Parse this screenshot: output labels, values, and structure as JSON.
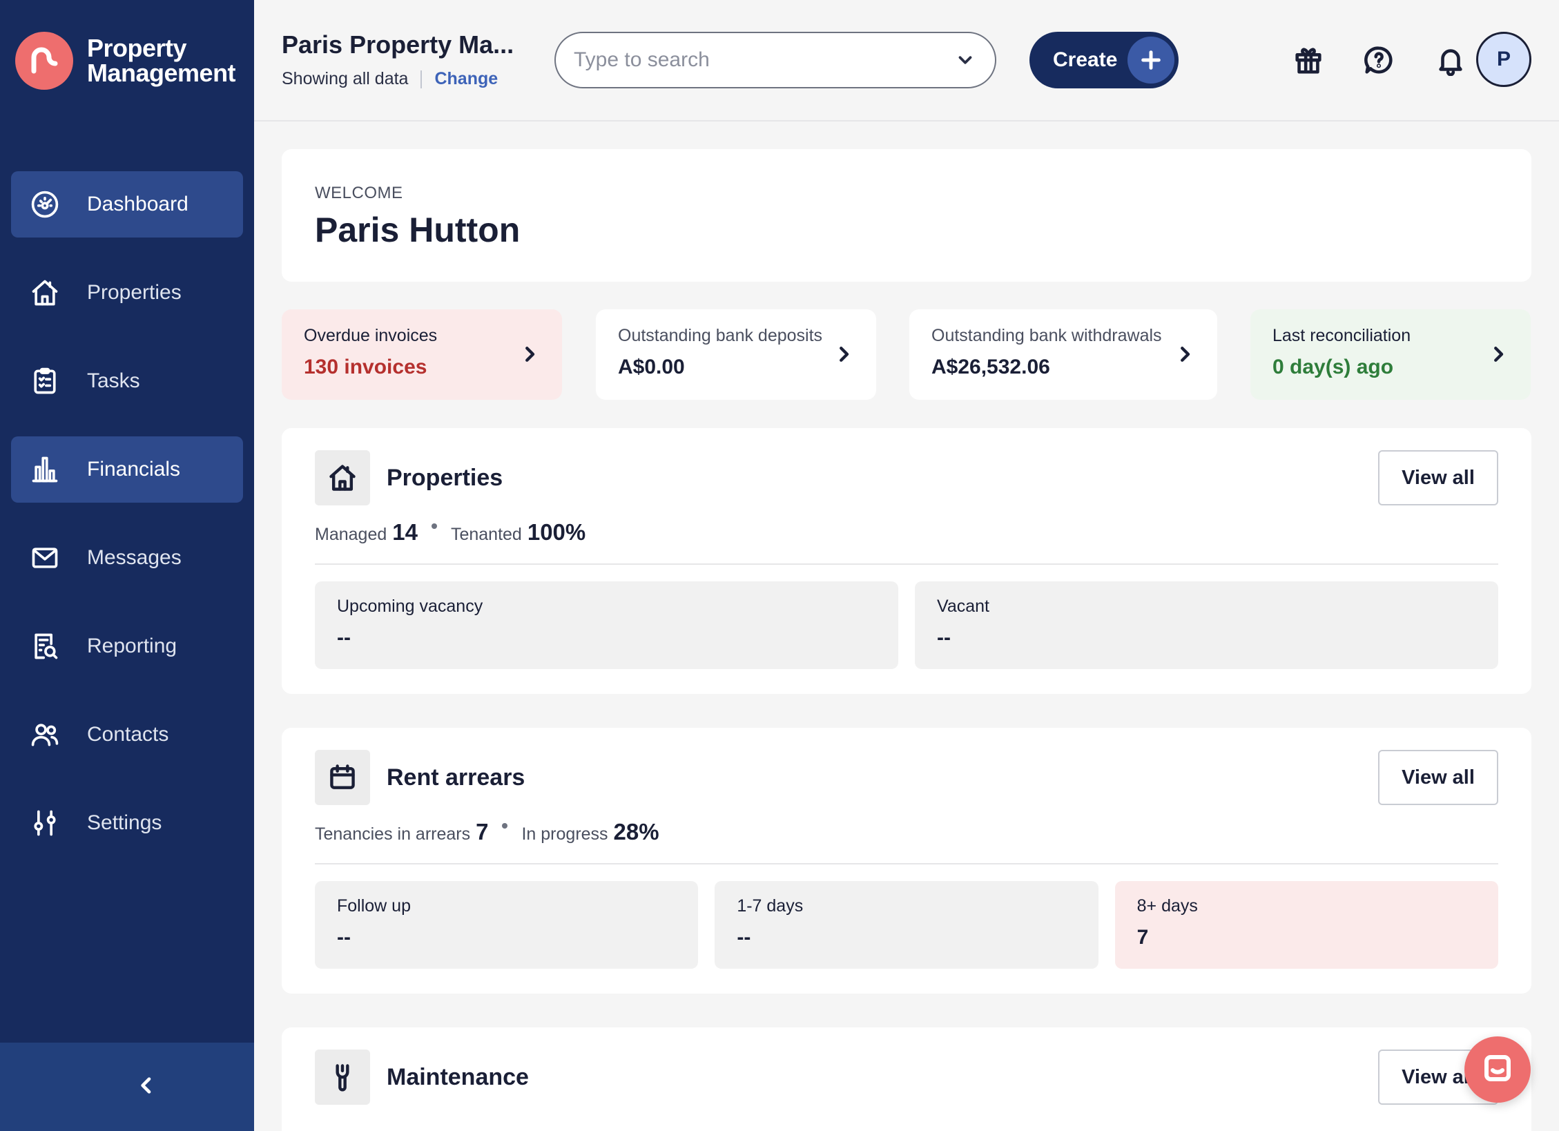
{
  "brand": {
    "line1": "Property",
    "line2": "Management",
    "logo_icon": "brand-logo-icon"
  },
  "sidebar": {
    "items": [
      {
        "label": "Dashboard",
        "icon": "dashboard-icon",
        "active": true
      },
      {
        "label": "Properties",
        "icon": "house-icon",
        "active": false
      },
      {
        "label": "Tasks",
        "icon": "clipboard-icon",
        "active": false
      },
      {
        "label": "Financials",
        "icon": "bar-chart-icon",
        "active": true
      },
      {
        "label": "Messages",
        "icon": "envelope-icon",
        "active": false
      },
      {
        "label": "Reporting",
        "icon": "report-search-icon",
        "active": false
      },
      {
        "label": "Contacts",
        "icon": "users-icon",
        "active": false
      },
      {
        "label": "Settings",
        "icon": "sliders-icon",
        "active": false
      }
    ],
    "collapse_icon": "chevron-left-icon"
  },
  "header": {
    "company_name": "Paris Property Ma...",
    "showing": "Showing all data",
    "change_label": "Change",
    "search_placeholder": "Type to search",
    "create_label": "Create",
    "avatar_initial": "P"
  },
  "welcome": {
    "eyebrow": "WELCOME",
    "name": "Paris Hutton"
  },
  "stats": [
    {
      "label": "Overdue invoices",
      "value": "130 invoices",
      "tone": "red"
    },
    {
      "label": "Outstanding bank deposits",
      "value": "A$0.00",
      "tone": "white"
    },
    {
      "label": "Outstanding bank withdrawals",
      "value": "A$26,532.06",
      "tone": "white"
    },
    {
      "label": "Last reconciliation",
      "value": "0 day(s) ago",
      "tone": "green"
    }
  ],
  "properties": {
    "title": "Properties",
    "view_all": "View all",
    "managed_label": "Managed",
    "managed_value": "14",
    "tenanted_label": "Tenanted",
    "tenanted_value": "100%",
    "tiles": [
      {
        "label": "Upcoming vacancy",
        "value": "--"
      },
      {
        "label": "Vacant",
        "value": "--"
      }
    ]
  },
  "rent_arrears": {
    "title": "Rent arrears",
    "view_all": "View all",
    "arrears_label": "Tenancies in arrears",
    "arrears_value": "7",
    "progress_label": "In progress",
    "progress_value": "28%",
    "tiles": [
      {
        "label": "Follow up",
        "value": "--"
      },
      {
        "label": "1-7 days",
        "value": "--"
      },
      {
        "label": "8+ days",
        "value": "7"
      }
    ]
  },
  "maintenance": {
    "title": "Maintenance",
    "view_all": "View all"
  },
  "colors": {
    "sidebar": "#172b5e",
    "accent": "#ee6e6e",
    "active_nav": "#2e4a8c",
    "overdue": "#b5302e",
    "reconciled": "#2e7d3a"
  }
}
